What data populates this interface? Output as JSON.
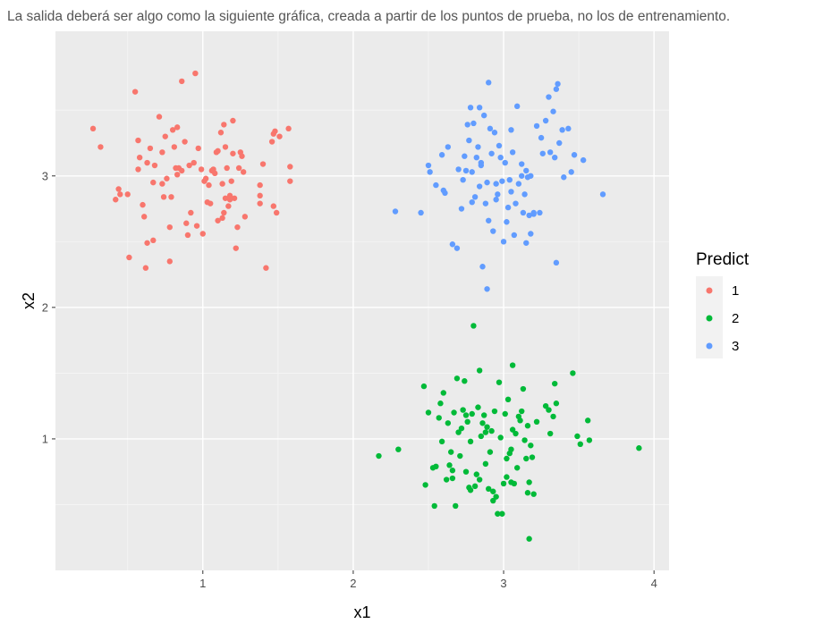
{
  "caption": "La salida deberá ser algo como la siguiente gráfica, creada a partir de los puntos de prueba, no los de entrenamiento.",
  "colors": {
    "panel": "#EBEBEB",
    "grid_major": "#FFFFFF",
    "grid_minor": "#F5F5F5",
    "series_1": "#F8766D",
    "series_2": "#00BA38",
    "series_3": "#619CFF"
  },
  "chart_data": {
    "type": "scatter",
    "title": "",
    "xlabel": "x1",
    "ylabel": "x2",
    "xlim": [
      0.02,
      4.1
    ],
    "ylim": [
      0.0,
      4.1
    ],
    "x_ticks": [
      1,
      2,
      3,
      4
    ],
    "y_ticks": [
      1,
      2,
      3
    ],
    "x_tick_labels": [
      "1",
      "2",
      "3",
      "4"
    ],
    "y_tick_labels": [
      "1",
      "2",
      "3"
    ],
    "grid": true,
    "legend": {
      "title": "Predict",
      "position": "right",
      "entries": [
        "1",
        "2",
        "3"
      ]
    },
    "series": [
      {
        "name": "1",
        "points": [
          [
            0.27,
            3.36
          ],
          [
            0.32,
            3.22
          ],
          [
            0.42,
            2.82
          ],
          [
            0.44,
            2.9
          ],
          [
            0.45,
            2.86
          ],
          [
            0.5,
            2.86
          ],
          [
            0.51,
            2.38
          ],
          [
            0.55,
            3.64
          ],
          [
            0.57,
            3.27
          ],
          [
            0.57,
            3.05
          ],
          [
            0.58,
            3.14
          ],
          [
            0.6,
            2.78
          ],
          [
            0.61,
            2.69
          ],
          [
            0.62,
            2.3
          ],
          [
            0.63,
            3.1
          ],
          [
            0.63,
            2.49
          ],
          [
            0.65,
            3.21
          ],
          [
            0.67,
            2.51
          ],
          [
            0.67,
            2.95
          ],
          [
            0.68,
            3.08
          ],
          [
            0.71,
            3.45
          ],
          [
            0.73,
            3.18
          ],
          [
            0.73,
            2.94
          ],
          [
            0.74,
            2.84
          ],
          [
            0.75,
            3.3
          ],
          [
            0.76,
            2.98
          ],
          [
            0.78,
            2.35
          ],
          [
            0.78,
            2.61
          ],
          [
            0.79,
            2.84
          ],
          [
            0.8,
            3.35
          ],
          [
            0.81,
            3.22
          ],
          [
            0.82,
            3.06
          ],
          [
            0.83,
            3.37
          ],
          [
            0.83,
            3.01
          ],
          [
            0.84,
            3.06
          ],
          [
            0.86,
            3.72
          ],
          [
            0.86,
            3.04
          ],
          [
            0.88,
            3.26
          ],
          [
            0.89,
            2.64
          ],
          [
            0.9,
            2.55
          ],
          [
            0.91,
            3.08
          ],
          [
            0.92,
            2.72
          ],
          [
            0.94,
            3.1
          ],
          [
            0.95,
            3.78
          ],
          [
            0.96,
            2.62
          ],
          [
            0.97,
            3.21
          ],
          [
            0.99,
            3.05
          ],
          [
            1,
            2.56
          ],
          [
            1.01,
            2.96
          ],
          [
            1.02,
            2.98
          ],
          [
            1.03,
            2.8
          ],
          [
            1.04,
            2.93
          ],
          [
            1.05,
            2.79
          ],
          [
            1.06,
            3.04
          ],
          [
            1.07,
            3.05
          ],
          [
            1.08,
            3.02
          ],
          [
            1.09,
            3.18
          ],
          [
            1.1,
            2.66
          ],
          [
            1.1,
            3.19
          ],
          [
            1.12,
            3.33
          ],
          [
            1.13,
            2.68
          ],
          [
            1.13,
            2.94
          ],
          [
            1.14,
            2.72
          ],
          [
            1.14,
            3.39
          ],
          [
            1.15,
            2.83
          ],
          [
            1.15,
            3.22
          ],
          [
            1.16,
            3.06
          ],
          [
            1.17,
            2.77
          ],
          [
            1.18,
            2.82
          ],
          [
            1.18,
            2.85
          ],
          [
            1.19,
            2.96
          ],
          [
            1.2,
            3.42
          ],
          [
            1.2,
            3.17
          ],
          [
            1.21,
            2.83
          ],
          [
            1.22,
            2.45
          ],
          [
            1.23,
            2.61
          ],
          [
            1.24,
            3.06
          ],
          [
            1.25,
            3.18
          ],
          [
            1.26,
            3.15
          ],
          [
            1.27,
            3.03
          ],
          [
            1.28,
            2.69
          ],
          [
            1.38,
            2.85
          ],
          [
            1.38,
            2.79
          ],
          [
            1.4,
            3.09
          ],
          [
            1.42,
            2.3
          ],
          [
            1.46,
            3.26
          ],
          [
            1.47,
            3.32
          ],
          [
            1.47,
            2.77
          ],
          [
            1.48,
            3.34
          ],
          [
            1.49,
            2.72
          ],
          [
            1.51,
            3.3
          ],
          [
            1.57,
            3.36
          ],
          [
            1.58,
            3.07
          ],
          [
            1.58,
            2.96
          ],
          [
            1.38,
            2.93
          ]
        ]
      },
      {
        "name": "2",
        "points": [
          [
            2.17,
            0.87
          ],
          [
            2.3,
            0.92
          ],
          [
            2.47,
            1.4
          ],
          [
            2.48,
            0.65
          ],
          [
            2.5,
            1.2
          ],
          [
            2.53,
            0.78
          ],
          [
            2.54,
            0.49
          ],
          [
            2.55,
            0.79
          ],
          [
            2.57,
            1.16
          ],
          [
            2.58,
            1.27
          ],
          [
            2.59,
            0.98
          ],
          [
            2.6,
            1.35
          ],
          [
            2.62,
            0.69
          ],
          [
            2.63,
            1.12
          ],
          [
            2.64,
            0.8
          ],
          [
            2.65,
            0.9
          ],
          [
            2.66,
            0.7
          ],
          [
            2.66,
            0.76
          ],
          [
            2.67,
            1.2
          ],
          [
            2.68,
            0.49
          ],
          [
            2.69,
            1.46
          ],
          [
            2.7,
            1.05
          ],
          [
            2.71,
            0.87
          ],
          [
            2.72,
            1.08
          ],
          [
            2.73,
            1.22
          ],
          [
            2.74,
            1.44
          ],
          [
            2.75,
            0.75
          ],
          [
            2.75,
            1.18
          ],
          [
            2.76,
            1.13
          ],
          [
            2.77,
            0.63
          ],
          [
            2.78,
            0.98
          ],
          [
            2.78,
            0.61
          ],
          [
            2.79,
            1.19
          ],
          [
            2.8,
            1.86
          ],
          [
            2.81,
            0.64
          ],
          [
            2.82,
            0.73
          ],
          [
            2.83,
            1.24
          ],
          [
            2.84,
            1.52
          ],
          [
            2.84,
            0.69
          ],
          [
            2.85,
            1.02
          ],
          [
            2.86,
            1.12
          ],
          [
            2.87,
            1.18
          ],
          [
            2.88,
            0.81
          ],
          [
            2.88,
            1.05
          ],
          [
            2.89,
            1.09
          ],
          [
            2.9,
            0.62
          ],
          [
            2.91,
            0.9
          ],
          [
            2.92,
            1.06
          ],
          [
            2.93,
            0.53
          ],
          [
            2.93,
            0.6
          ],
          [
            2.94,
            1.21
          ],
          [
            2.95,
            0.56
          ],
          [
            2.96,
            0.43
          ],
          [
            2.97,
            1.43
          ],
          [
            2.98,
            1.01
          ],
          [
            2.99,
            0.43
          ],
          [
            3,
            0.66
          ],
          [
            3.01,
            1.19
          ],
          [
            3.02,
            0.85
          ],
          [
            3.02,
            0.71
          ],
          [
            3.03,
            1.3
          ],
          [
            3.04,
            0.89
          ],
          [
            3.05,
            0.67
          ],
          [
            3.06,
            1.07
          ],
          [
            3.06,
            1.56
          ],
          [
            3.07,
            0.66
          ],
          [
            3.08,
            1.04
          ],
          [
            3.09,
            0.78
          ],
          [
            3.1,
            1.17
          ],
          [
            3.11,
            1.14
          ],
          [
            3.12,
            1.21
          ],
          [
            3.13,
            1.38
          ],
          [
            3.14,
            0.99
          ],
          [
            3.15,
            0.85
          ],
          [
            3.16,
            1.1
          ],
          [
            3.16,
            0.59
          ],
          [
            3.17,
            0.24
          ],
          [
            3.17,
            0.67
          ],
          [
            3.18,
            0.95
          ],
          [
            3.19,
            0.86
          ],
          [
            3.2,
            0.58
          ],
          [
            3.22,
            1.13
          ],
          [
            3.28,
            1.25
          ],
          [
            3.3,
            1.22
          ],
          [
            3.31,
            1.04
          ],
          [
            3.33,
            1.17
          ],
          [
            3.34,
            1.42
          ],
          [
            3.35,
            1.27
          ],
          [
            3.46,
            1.5
          ],
          [
            3.49,
            1.02
          ],
          [
            3.51,
            0.96
          ],
          [
            3.56,
            1.14
          ],
          [
            3.57,
            0.99
          ],
          [
            3.9,
            0.93
          ],
          [
            3.05,
            0.92
          ]
        ]
      },
      {
        "name": "3",
        "points": [
          [
            2.28,
            2.73
          ],
          [
            2.45,
            2.72
          ],
          [
            2.5,
            3.08
          ],
          [
            2.51,
            3.03
          ],
          [
            2.55,
            2.93
          ],
          [
            2.59,
            3.16
          ],
          [
            2.6,
            2.89
          ],
          [
            2.61,
            2.87
          ],
          [
            2.63,
            3.22
          ],
          [
            2.66,
            2.48
          ],
          [
            2.69,
            2.45
          ],
          [
            2.7,
            3.05
          ],
          [
            2.72,
            2.75
          ],
          [
            2.73,
            2.97
          ],
          [
            2.74,
            3.15
          ],
          [
            2.75,
            3.04
          ],
          [
            2.76,
            3.39
          ],
          [
            2.77,
            3.27
          ],
          [
            2.78,
            3.52
          ],
          [
            2.79,
            3.03
          ],
          [
            2.8,
            3.4
          ],
          [
            2.81,
            2.84
          ],
          [
            2.82,
            3.14
          ],
          [
            2.83,
            3.22
          ],
          [
            2.84,
            3.52
          ],
          [
            2.84,
            2.92
          ],
          [
            2.85,
            3.08
          ],
          [
            2.86,
            2.31
          ],
          [
            2.87,
            3.46
          ],
          [
            2.88,
            2.79
          ],
          [
            2.89,
            2.95
          ],
          [
            2.89,
            2.14
          ],
          [
            2.9,
            3.71
          ],
          [
            2.91,
            3.36
          ],
          [
            2.92,
            3.17
          ],
          [
            2.93,
            2.58
          ],
          [
            2.94,
            3.33
          ],
          [
            2.95,
            2.82
          ],
          [
            2.96,
            2.86
          ],
          [
            2.97,
            3.23
          ],
          [
            2.98,
            3.14
          ],
          [
            2.99,
            2.96
          ],
          [
            3,
            2.5
          ],
          [
            3.01,
            3.1
          ],
          [
            3.02,
            2.65
          ],
          [
            3.03,
            2.76
          ],
          [
            3.04,
            2.97
          ],
          [
            3.05,
            3.35
          ],
          [
            3.06,
            3.18
          ],
          [
            3.07,
            2.55
          ],
          [
            3.08,
            2.79
          ],
          [
            3.09,
            3.53
          ],
          [
            3.1,
            2.94
          ],
          [
            3.12,
            3.0
          ],
          [
            3.13,
            2.72
          ],
          [
            3.14,
            2.86
          ],
          [
            3.15,
            2.49
          ],
          [
            3.16,
            2.99
          ],
          [
            3.17,
            2.7
          ],
          [
            3.18,
            2.56
          ],
          [
            3.2,
            2.72
          ],
          [
            3.22,
            3.38
          ],
          [
            3.24,
            2.72
          ],
          [
            3.25,
            3.29
          ],
          [
            3.26,
            3.17
          ],
          [
            3.28,
            3.42
          ],
          [
            3.3,
            3.6
          ],
          [
            3.31,
            3.18
          ],
          [
            3.33,
            3.49
          ],
          [
            3.34,
            3.14
          ],
          [
            3.35,
            2.34
          ],
          [
            3.36,
            3.7
          ],
          [
            3.37,
            3.25
          ],
          [
            3.39,
            3.35
          ],
          [
            3.4,
            2.99
          ],
          [
            3.43,
            3.36
          ],
          [
            3.45,
            3.03
          ],
          [
            3.47,
            3.16
          ],
          [
            3.53,
            3.12
          ],
          [
            3.66,
            2.86
          ],
          [
            2.85,
            3.1
          ],
          [
            2.95,
            2.94
          ],
          [
            3.05,
            2.88
          ],
          [
            3.15,
            3.04
          ],
          [
            3.35,
            3.66
          ],
          [
            2.9,
            2.66
          ],
          [
            3.12,
            3.09
          ],
          [
            2.79,
            2.8
          ],
          [
            3.18,
            3.0
          ],
          [
            3.2,
            2.71
          ]
        ]
      }
    ]
  }
}
